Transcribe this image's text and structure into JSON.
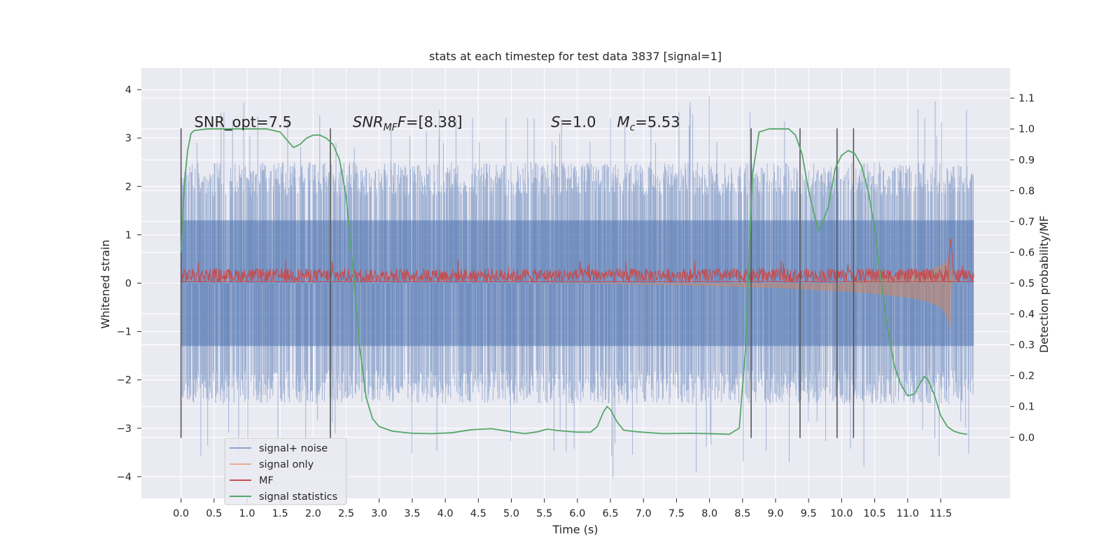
{
  "chart_data": {
    "type": "line",
    "title": "stats at each timestep for test data 3837 [signal=1]",
    "xlabel": "Time (s)",
    "ylabel_left": "Whitened strain",
    "ylabel_right": "Detection probability/MF",
    "xlim": [
      -0.6,
      12.55
    ],
    "ylim_left": [
      -4.45,
      4.45
    ],
    "ylim_right": [
      -0.198,
      1.198
    ],
    "x_ticks": [
      0.0,
      0.5,
      1.0,
      1.5,
      2.0,
      2.5,
      3.0,
      3.5,
      4.0,
      4.5,
      5.0,
      5.5,
      6.0,
      6.5,
      7.0,
      7.5,
      8.0,
      8.5,
      9.0,
      9.5,
      10.0,
      10.5,
      11.0,
      11.5
    ],
    "x_tick_labels": [
      "0.0",
      "0.5",
      "1.0",
      "1.5",
      "2.0",
      "2.5",
      "3.0",
      "3.5",
      "4.0",
      "4.5",
      "5.0",
      "5.5",
      "6.0",
      "6.5",
      "7.0",
      "7.5",
      "8.0",
      "8.5",
      "9.0",
      "9.5",
      "10.0",
      "10.5",
      "11.0",
      "11.5"
    ],
    "y_left_ticks": [
      -4,
      -3,
      -2,
      -1,
      0,
      1,
      2,
      3,
      4
    ],
    "y_left_tick_labels": [
      "−4",
      "−3",
      "−2",
      "−1",
      "0",
      "1",
      "2",
      "3",
      "4"
    ],
    "y_right_ticks": [
      0.0,
      0.1,
      0.2,
      0.3,
      0.4,
      0.5,
      0.6,
      0.7,
      0.8,
      0.9,
      1.0,
      1.1
    ],
    "y_right_tick_labels": [
      "0.0",
      "0.1",
      "0.2",
      "0.3",
      "0.4",
      "0.5",
      "0.6",
      "0.7",
      "0.8",
      "0.9",
      "1.0",
      "1.1"
    ],
    "grid": true,
    "legend_position": "lower-left",
    "annotations": [
      {
        "x": 0.2,
        "y": 3.2,
        "plain": "SNR_opt=7.5"
      },
      {
        "x": 2.6,
        "y": 3.2,
        "italic": "SNR",
        "sub": "MF",
        "italic2": "F",
        "rest": "=[8.38]"
      },
      {
        "x": 5.6,
        "y": 3.2,
        "italic": "S",
        "rest": "=1.0"
      },
      {
        "x": 6.6,
        "y": 3.2,
        "italic": "M",
        "sub": "c",
        "rest": "=5.53"
      }
    ],
    "vertical_lines": {
      "color": "#555555",
      "ymin": -3.2,
      "ymax": 3.2,
      "x": [
        0.0,
        2.26,
        8.63,
        9.37,
        9.93,
        10.18
      ]
    },
    "series": [
      {
        "name": "signal+ noise",
        "color": "#4c72b0",
        "axis": "left",
        "description": "dense noisy strain trace, 0 to 12 s",
        "x_range": [
          0.0,
          12.0
        ],
        "core_band": [
          -1.3,
          1.3
        ],
        "typical_envelope": [
          -2.5,
          2.5
        ],
        "extremes": [
          -3.9,
          4.1
        ]
      },
      {
        "name": "signal only",
        "color": "#dd8452",
        "axis": "left",
        "description": "chirp, amplitude grows toward merger near 11.65 s",
        "points": [
          [
            5.0,
            0.0
          ],
          [
            7.0,
            -0.03
          ],
          [
            8.0,
            -0.06
          ],
          [
            9.0,
            -0.1
          ],
          [
            10.0,
            -0.17
          ],
          [
            10.5,
            -0.22
          ],
          [
            11.0,
            -0.3
          ],
          [
            11.3,
            -0.38
          ],
          [
            11.5,
            -0.5
          ],
          [
            11.6,
            -0.7
          ],
          [
            11.65,
            -0.95
          ],
          [
            11.67,
            0.4
          ],
          [
            11.7,
            0.0
          ]
        ]
      },
      {
        "name": "MF",
        "color": "#c44e52",
        "axis": "right",
        "description": "matched-filter output, baseline near 0.52 with a spike at 11.65 s",
        "baseline": 0.525,
        "spike": [
          11.65,
          0.65
        ]
      },
      {
        "name": "signal statistics",
        "color": "#55a868",
        "axis": "right",
        "points": [
          [
            0.0,
            0.6
          ],
          [
            0.05,
            0.82
          ],
          [
            0.1,
            0.93
          ],
          [
            0.15,
            0.985
          ],
          [
            0.2,
            0.995
          ],
          [
            0.4,
            1.0
          ],
          [
            1.0,
            1.0
          ],
          [
            1.3,
            1.0
          ],
          [
            1.5,
            0.99
          ],
          [
            1.62,
            0.96
          ],
          [
            1.7,
            0.94
          ],
          [
            1.8,
            0.95
          ],
          [
            1.9,
            0.97
          ],
          [
            2.0,
            0.98
          ],
          [
            2.1,
            0.98
          ],
          [
            2.2,
            0.97
          ],
          [
            2.3,
            0.95
          ],
          [
            2.4,
            0.9
          ],
          [
            2.5,
            0.78
          ],
          [
            2.6,
            0.55
          ],
          [
            2.7,
            0.3
          ],
          [
            2.8,
            0.13
          ],
          [
            2.9,
            0.06
          ],
          [
            3.0,
            0.035
          ],
          [
            3.2,
            0.02
          ],
          [
            3.5,
            0.013
          ],
          [
            3.8,
            0.012
          ],
          [
            4.1,
            0.015
          ],
          [
            4.4,
            0.025
          ],
          [
            4.7,
            0.028
          ],
          [
            5.0,
            0.018
          ],
          [
            5.2,
            0.012
          ],
          [
            5.4,
            0.018
          ],
          [
            5.55,
            0.027
          ],
          [
            5.7,
            0.022
          ],
          [
            6.0,
            0.017
          ],
          [
            6.2,
            0.017
          ],
          [
            6.3,
            0.035
          ],
          [
            6.4,
            0.085
          ],
          [
            6.45,
            0.1
          ],
          [
            6.5,
            0.09
          ],
          [
            6.6,
            0.05
          ],
          [
            6.7,
            0.023
          ],
          [
            6.9,
            0.018
          ],
          [
            7.3,
            0.012
          ],
          [
            7.7,
            0.013
          ],
          [
            8.0,
            0.012
          ],
          [
            8.3,
            0.01
          ],
          [
            8.45,
            0.03
          ],
          [
            8.55,
            0.3
          ],
          [
            8.65,
            0.85
          ],
          [
            8.75,
            0.99
          ],
          [
            8.9,
            1.0
          ],
          [
            9.2,
            1.0
          ],
          [
            9.3,
            0.98
          ],
          [
            9.4,
            0.92
          ],
          [
            9.5,
            0.8
          ],
          [
            9.6,
            0.71
          ],
          [
            9.65,
            0.67
          ],
          [
            9.72,
            0.7
          ],
          [
            9.8,
            0.75
          ],
          [
            9.9,
            0.87
          ],
          [
            10.0,
            0.915
          ],
          [
            10.1,
            0.93
          ],
          [
            10.2,
            0.92
          ],
          [
            10.3,
            0.88
          ],
          [
            10.4,
            0.8
          ],
          [
            10.5,
            0.68
          ],
          [
            10.6,
            0.5
          ],
          [
            10.7,
            0.35
          ],
          [
            10.8,
            0.23
          ],
          [
            10.9,
            0.17
          ],
          [
            11.0,
            0.135
          ],
          [
            11.1,
            0.14
          ],
          [
            11.2,
            0.18
          ],
          [
            11.25,
            0.197
          ],
          [
            11.3,
            0.19
          ],
          [
            11.4,
            0.14
          ],
          [
            11.5,
            0.07
          ],
          [
            11.6,
            0.035
          ],
          [
            11.7,
            0.02
          ],
          [
            11.8,
            0.013
          ],
          [
            11.9,
            0.01
          ]
        ]
      }
    ]
  }
}
